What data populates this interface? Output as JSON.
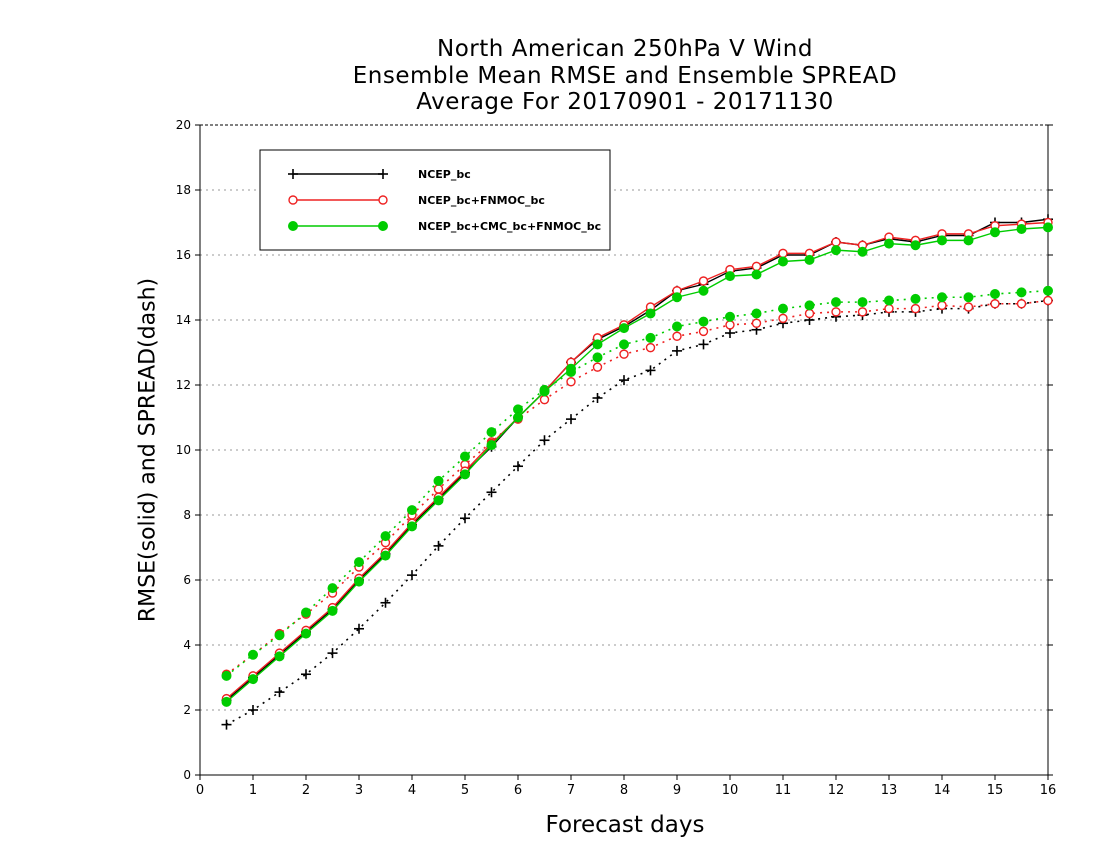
{
  "chart_data": {
    "type": "line",
    "title": [
      "North American 250hPa V Wind",
      "Ensemble Mean RMSE and Ensemble SPREAD",
      "Average For 20170901 - 20171130"
    ],
    "xlabel": "Forecast days",
    "ylabel": "RMSE(solid) and SPREAD(dash)",
    "xlim": [
      0,
      16
    ],
    "ylim": [
      0,
      20
    ],
    "xticks": [
      0,
      1,
      2,
      3,
      4,
      5,
      6,
      7,
      8,
      9,
      10,
      11,
      12,
      13,
      14,
      15,
      16
    ],
    "yticks": [
      0,
      2,
      4,
      6,
      8,
      10,
      12,
      14,
      16,
      18,
      20
    ],
    "grid": "horizontal dotted",
    "legend_position": "top-left",
    "x": [
      0.5,
      1,
      1.5,
      2,
      2.5,
      3,
      3.5,
      4,
      4.5,
      5,
      5.5,
      6,
      6.5,
      7,
      7.5,
      8,
      8.5,
      9,
      9.5,
      10,
      10.5,
      11,
      11.5,
      12,
      12.5,
      13,
      13.5,
      14,
      14.5,
      15,
      15.5,
      16
    ],
    "series": [
      {
        "name": "NCEP_bc",
        "metric": "RMSE",
        "style": "solid",
        "color": "#000000",
        "marker": "plus",
        "values": [
          2.3,
          3.0,
          3.7,
          4.4,
          5.1,
          6.0,
          6.8,
          7.7,
          8.5,
          9.3,
          10.1,
          11.0,
          11.8,
          12.7,
          13.4,
          13.8,
          14.3,
          14.9,
          15.1,
          15.5,
          15.6,
          16.0,
          16.0,
          16.4,
          16.3,
          16.5,
          16.4,
          16.6,
          16.6,
          17.0,
          17.0,
          17.1
        ]
      },
      {
        "name": "NCEP_bc+FNMOC_bc",
        "metric": "RMSE",
        "style": "solid",
        "color": "#ee2222",
        "marker": "open-circle",
        "values": [
          2.35,
          3.05,
          3.75,
          4.45,
          5.15,
          6.05,
          6.85,
          7.75,
          8.55,
          9.35,
          10.2,
          11.0,
          11.8,
          12.7,
          13.45,
          13.85,
          14.4,
          14.9,
          15.2,
          15.55,
          15.65,
          16.05,
          16.05,
          16.4,
          16.3,
          16.55,
          16.45,
          16.65,
          16.65,
          16.9,
          16.95,
          17.0
        ]
      },
      {
        "name": "NCEP_bc+CMC_bc+FNMOC_bc",
        "metric": "RMSE",
        "style": "solid",
        "color": "#00cc00",
        "marker": "filled-circle",
        "values": [
          2.25,
          2.95,
          3.65,
          4.35,
          5.05,
          5.95,
          6.75,
          7.65,
          8.45,
          9.25,
          10.15,
          11.0,
          11.8,
          12.5,
          13.25,
          13.75,
          14.2,
          14.7,
          14.9,
          15.35,
          15.4,
          15.8,
          15.85,
          16.15,
          16.1,
          16.35,
          16.3,
          16.45,
          16.45,
          16.7,
          16.8,
          16.85
        ]
      },
      {
        "name": "NCEP_bc",
        "metric": "SPREAD",
        "style": "dotted",
        "color": "#000000",
        "marker": "plus",
        "values": [
          1.55,
          2.0,
          2.55,
          3.1,
          3.75,
          4.5,
          5.3,
          6.15,
          7.05,
          7.9,
          8.7,
          9.5,
          10.3,
          10.95,
          11.6,
          12.15,
          12.45,
          13.05,
          13.25,
          13.6,
          13.7,
          13.9,
          14.0,
          14.1,
          14.15,
          14.25,
          14.25,
          14.35,
          14.35,
          14.5,
          14.5,
          14.6
        ]
      },
      {
        "name": "NCEP_bc+FNMOC_bc",
        "metric": "SPREAD",
        "style": "dotted",
        "color": "#ee2222",
        "marker": "open-circle",
        "values": [
          3.1,
          3.7,
          4.35,
          4.95,
          5.6,
          6.4,
          7.15,
          8.0,
          8.8,
          9.55,
          10.25,
          10.95,
          11.55,
          12.1,
          12.55,
          12.95,
          13.15,
          13.5,
          13.65,
          13.85,
          13.9,
          14.05,
          14.2,
          14.25,
          14.25,
          14.35,
          14.35,
          14.45,
          14.4,
          14.5,
          14.5,
          14.6
        ]
      },
      {
        "name": "NCEP_bc+CMC_bc+FNMOC_bc",
        "metric": "SPREAD",
        "style": "dotted",
        "color": "#00cc00",
        "marker": "filled-circle",
        "values": [
          3.05,
          3.7,
          4.3,
          5.0,
          5.75,
          6.55,
          7.35,
          8.15,
          9.05,
          9.8,
          10.55,
          11.25,
          11.85,
          12.4,
          12.85,
          13.25,
          13.45,
          13.8,
          13.95,
          14.1,
          14.2,
          14.35,
          14.45,
          14.55,
          14.55,
          14.6,
          14.65,
          14.7,
          14.7,
          14.8,
          14.85,
          14.9
        ]
      }
    ],
    "legend": [
      {
        "label": "NCEP_bc",
        "color": "#000000",
        "marker": "plus"
      },
      {
        "label": "NCEP_bc+FNMOC_bc",
        "color": "#ee2222",
        "marker": "open-circle"
      },
      {
        "label": "NCEP_bc+CMC_bc+FNMOC_bc",
        "color": "#00cc00",
        "marker": "filled-circle"
      }
    ]
  }
}
